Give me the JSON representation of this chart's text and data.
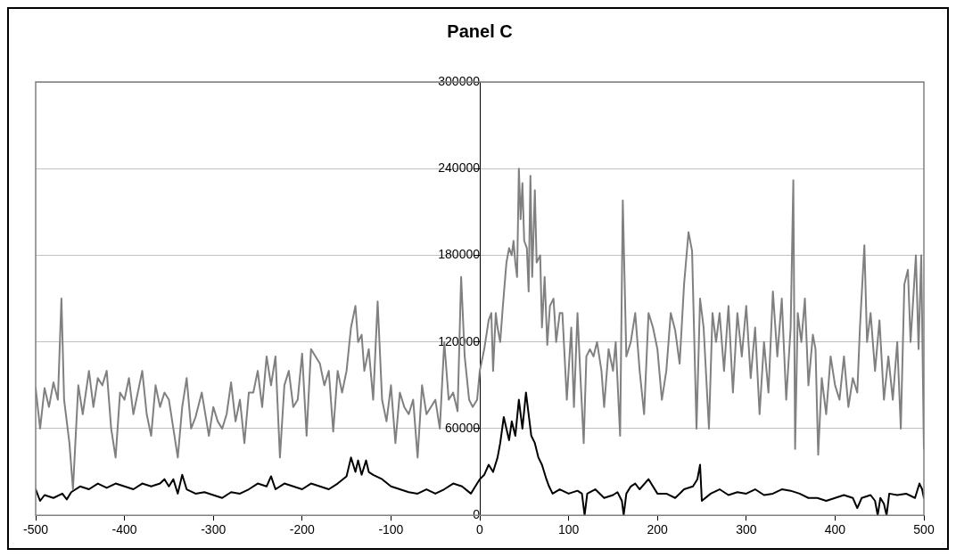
{
  "chart_data": {
    "type": "line",
    "title": "Panel C",
    "xlim": [
      -500,
      500
    ],
    "xticks": [
      -500,
      -400,
      -300,
      -200,
      -100,
      0,
      100,
      200,
      300,
      400,
      500
    ],
    "ylim": [
      0,
      300000
    ],
    "yticks": [
      0,
      60000,
      120000,
      180000,
      240000,
      300000
    ],
    "grid": "y",
    "marker": "none",
    "line_style": "solid",
    "series": [
      {
        "color": "#808080",
        "x": [
          -500,
          -495,
          -490,
          -485,
          -480,
          -475,
          -471,
          -468,
          -462,
          -458,
          -452,
          -447,
          -440,
          -435,
          -430,
          -425,
          -420,
          -415,
          -410,
          -405,
          -400,
          -395,
          -390,
          -385,
          -380,
          -375,
          -370,
          -365,
          -360,
          -355,
          -350,
          -345,
          -340,
          -335,
          -330,
          -325,
          -320,
          -313,
          -305,
          -300,
          -295,
          -290,
          -285,
          -280,
          -275,
          -270,
          -265,
          -260,
          -255,
          -250,
          -245,
          -240,
          -235,
          -230,
          -225,
          -220,
          -215,
          -210,
          -205,
          -200,
          -195,
          -190,
          -180,
          -175,
          -170,
          -165,
          -160,
          -155,
          -150,
          -145,
          -140,
          -137,
          -133,
          -130,
          -125,
          -120,
          -115,
          -110,
          -105,
          -100,
          -95,
          -90,
          -85,
          -80,
          -75,
          -70,
          -65,
          -60,
          -55,
          -50,
          -45,
          -40,
          -35,
          -30,
          -25,
          -21,
          -17,
          -12,
          -8,
          -3,
          0,
          5,
          10,
          13,
          15,
          18,
          20,
          23,
          26,
          30,
          33,
          36,
          38,
          40,
          42,
          44,
          46,
          48,
          50,
          53,
          55,
          57,
          59,
          62,
          64,
          68,
          70,
          73,
          76,
          79,
          83,
          86,
          90,
          93,
          98,
          103,
          106,
          110,
          113,
          117,
          120,
          124,
          128,
          132,
          137,
          140,
          145,
          150,
          153,
          158,
          161,
          165,
          170,
          175,
          180,
          185,
          190,
          195,
          200,
          205,
          210,
          215,
          220,
          225,
          230,
          235,
          239,
          244,
          248,
          252,
          258,
          262,
          266,
          270,
          275,
          280,
          285,
          290,
          295,
          300,
          305,
          310,
          315,
          320,
          325,
          330,
          335,
          340,
          345,
          350,
          353,
          355,
          358,
          362,
          366,
          370,
          375,
          378,
          381,
          385,
          390,
          395,
          400,
          405,
          410,
          415,
          420,
          425,
          428,
          433,
          436,
          440,
          445,
          450,
          455,
          460,
          465,
          470,
          474,
          478,
          482,
          485,
          488,
          491,
          494,
          497,
          500
        ],
        "values": [
          88000,
          60000,
          88000,
          75000,
          92000,
          80000,
          150000,
          80000,
          50000,
          18000,
          90000,
          70000,
          100000,
          75000,
          95000,
          90000,
          100000,
          60000,
          40000,
          85000,
          80000,
          95000,
          70000,
          85000,
          100000,
          70000,
          55000,
          90000,
          75000,
          85000,
          80000,
          60000,
          40000,
          75000,
          95000,
          60000,
          68000,
          85000,
          55000,
          75000,
          65000,
          60000,
          70000,
          92000,
          65000,
          80000,
          50000,
          85000,
          85000,
          100000,
          75000,
          110000,
          90000,
          110000,
          40000,
          90000,
          100000,
          75000,
          80000,
          112000,
          55000,
          115000,
          105000,
          90000,
          100000,
          58000,
          100000,
          85000,
          100000,
          130000,
          145000,
          120000,
          125000,
          100000,
          115000,
          80000,
          148000,
          80000,
          65000,
          90000,
          50000,
          85000,
          75000,
          70000,
          80000,
          40000,
          90000,
          70000,
          75000,
          80000,
          60000,
          120000,
          80000,
          85000,
          72000,
          165000,
          110000,
          80000,
          75000,
          80000,
          100000,
          115000,
          135000,
          140000,
          100000,
          140000,
          130000,
          120000,
          145000,
          175000,
          185000,
          180000,
          190000,
          175000,
          165000,
          240000,
          205000,
          230000,
          190000,
          185000,
          155000,
          235000,
          165000,
          225000,
          175000,
          180000,
          130000,
          165000,
          118000,
          145000,
          150000,
          120000,
          140000,
          140000,
          80000,
          130000,
          75000,
          140000,
          100000,
          50000,
          110000,
          115000,
          110000,
          120000,
          100000,
          75000,
          115000,
          100000,
          120000,
          55000,
          218000,
          110000,
          120000,
          140000,
          100000,
          70000,
          140000,
          130000,
          115000,
          80000,
          100000,
          140000,
          128000,
          105000,
          160000,
          196000,
          183000,
          60000,
          150000,
          130000,
          60000,
          140000,
          120000,
          140000,
          100000,
          145000,
          85000,
          140000,
          110000,
          145000,
          95000,
          130000,
          70000,
          120000,
          85000,
          155000,
          110000,
          150000,
          80000,
          130000,
          232000,
          46000,
          140000,
          120000,
          150000,
          90000,
          125000,
          115000,
          42000,
          95000,
          70000,
          110000,
          90000,
          80000,
          110000,
          75000,
          95000,
          85000,
          130000,
          187000,
          120000,
          140000,
          100000,
          135000,
          80000,
          110000,
          80000,
          120000,
          60000,
          160000,
          170000,
          120000,
          150000,
          180000,
          115000,
          180000,
          46000
        ]
      },
      {
        "color": "#000000",
        "x": [
          -500,
          -495,
          -490,
          -480,
          -470,
          -465,
          -460,
          -450,
          -440,
          -430,
          -420,
          -410,
          -400,
          -390,
          -380,
          -370,
          -360,
          -355,
          -350,
          -345,
          -340,
          -335,
          -330,
          -320,
          -310,
          -300,
          -290,
          -280,
          -270,
          -260,
          -250,
          -240,
          -235,
          -230,
          -220,
          -210,
          -200,
          -190,
          -180,
          -170,
          -160,
          -150,
          -145,
          -140,
          -137,
          -133,
          -128,
          -125,
          -120,
          -110,
          -100,
          -90,
          -80,
          -70,
          -60,
          -50,
          -40,
          -30,
          -20,
          -10,
          -5,
          0,
          5,
          10,
          15,
          20,
          23,
          27,
          30,
          33,
          36,
          40,
          44,
          48,
          52,
          55,
          58,
          62,
          66,
          70,
          75,
          78,
          82,
          90,
          100,
          110,
          115,
          118,
          121,
          130,
          140,
          150,
          155,
          160,
          162,
          165,
          170,
          175,
          180,
          190,
          200,
          210,
          220,
          230,
          240,
          245,
          248,
          250,
          260,
          270,
          280,
          290,
          300,
          310,
          320,
          330,
          340,
          350,
          360,
          370,
          380,
          390,
          400,
          410,
          420,
          425,
          430,
          440,
          445,
          448,
          451,
          455,
          458,
          461,
          470,
          480,
          490,
          495,
          498,
          500
        ],
        "values": [
          18000,
          10000,
          14000,
          12000,
          15000,
          11000,
          16000,
          20000,
          18000,
          22000,
          19000,
          22000,
          20000,
          18000,
          22000,
          20000,
          22000,
          25000,
          20000,
          25000,
          15000,
          28000,
          18000,
          15000,
          16000,
          14000,
          12000,
          16000,
          15000,
          18000,
          22000,
          20000,
          27000,
          18000,
          22000,
          20000,
          18000,
          22000,
          20000,
          18000,
          22000,
          27000,
          40000,
          30000,
          38000,
          28000,
          38000,
          30000,
          28000,
          25000,
          20000,
          18000,
          16000,
          15000,
          18000,
          15000,
          18000,
          22000,
          20000,
          15000,
          20000,
          25000,
          28000,
          35000,
          30000,
          40000,
          50000,
          68000,
          60000,
          52000,
          65000,
          55000,
          80000,
          60000,
          85000,
          70000,
          55000,
          50000,
          40000,
          35000,
          25000,
          20000,
          15000,
          18000,
          15000,
          17000,
          15000,
          0,
          15000,
          18000,
          12000,
          14000,
          16000,
          10000,
          0,
          15000,
          20000,
          22000,
          18000,
          25000,
          15000,
          15000,
          12000,
          18000,
          20000,
          25000,
          35000,
          10000,
          15000,
          18000,
          14000,
          16000,
          15000,
          18000,
          14000,
          15000,
          18000,
          17000,
          15000,
          12000,
          12000,
          10000,
          12000,
          14000,
          12000,
          5000,
          12000,
          14000,
          10000,
          0,
          12000,
          8000,
          0,
          15000,
          14000,
          15000,
          12000,
          22000,
          18000,
          12000
        ]
      }
    ]
  }
}
